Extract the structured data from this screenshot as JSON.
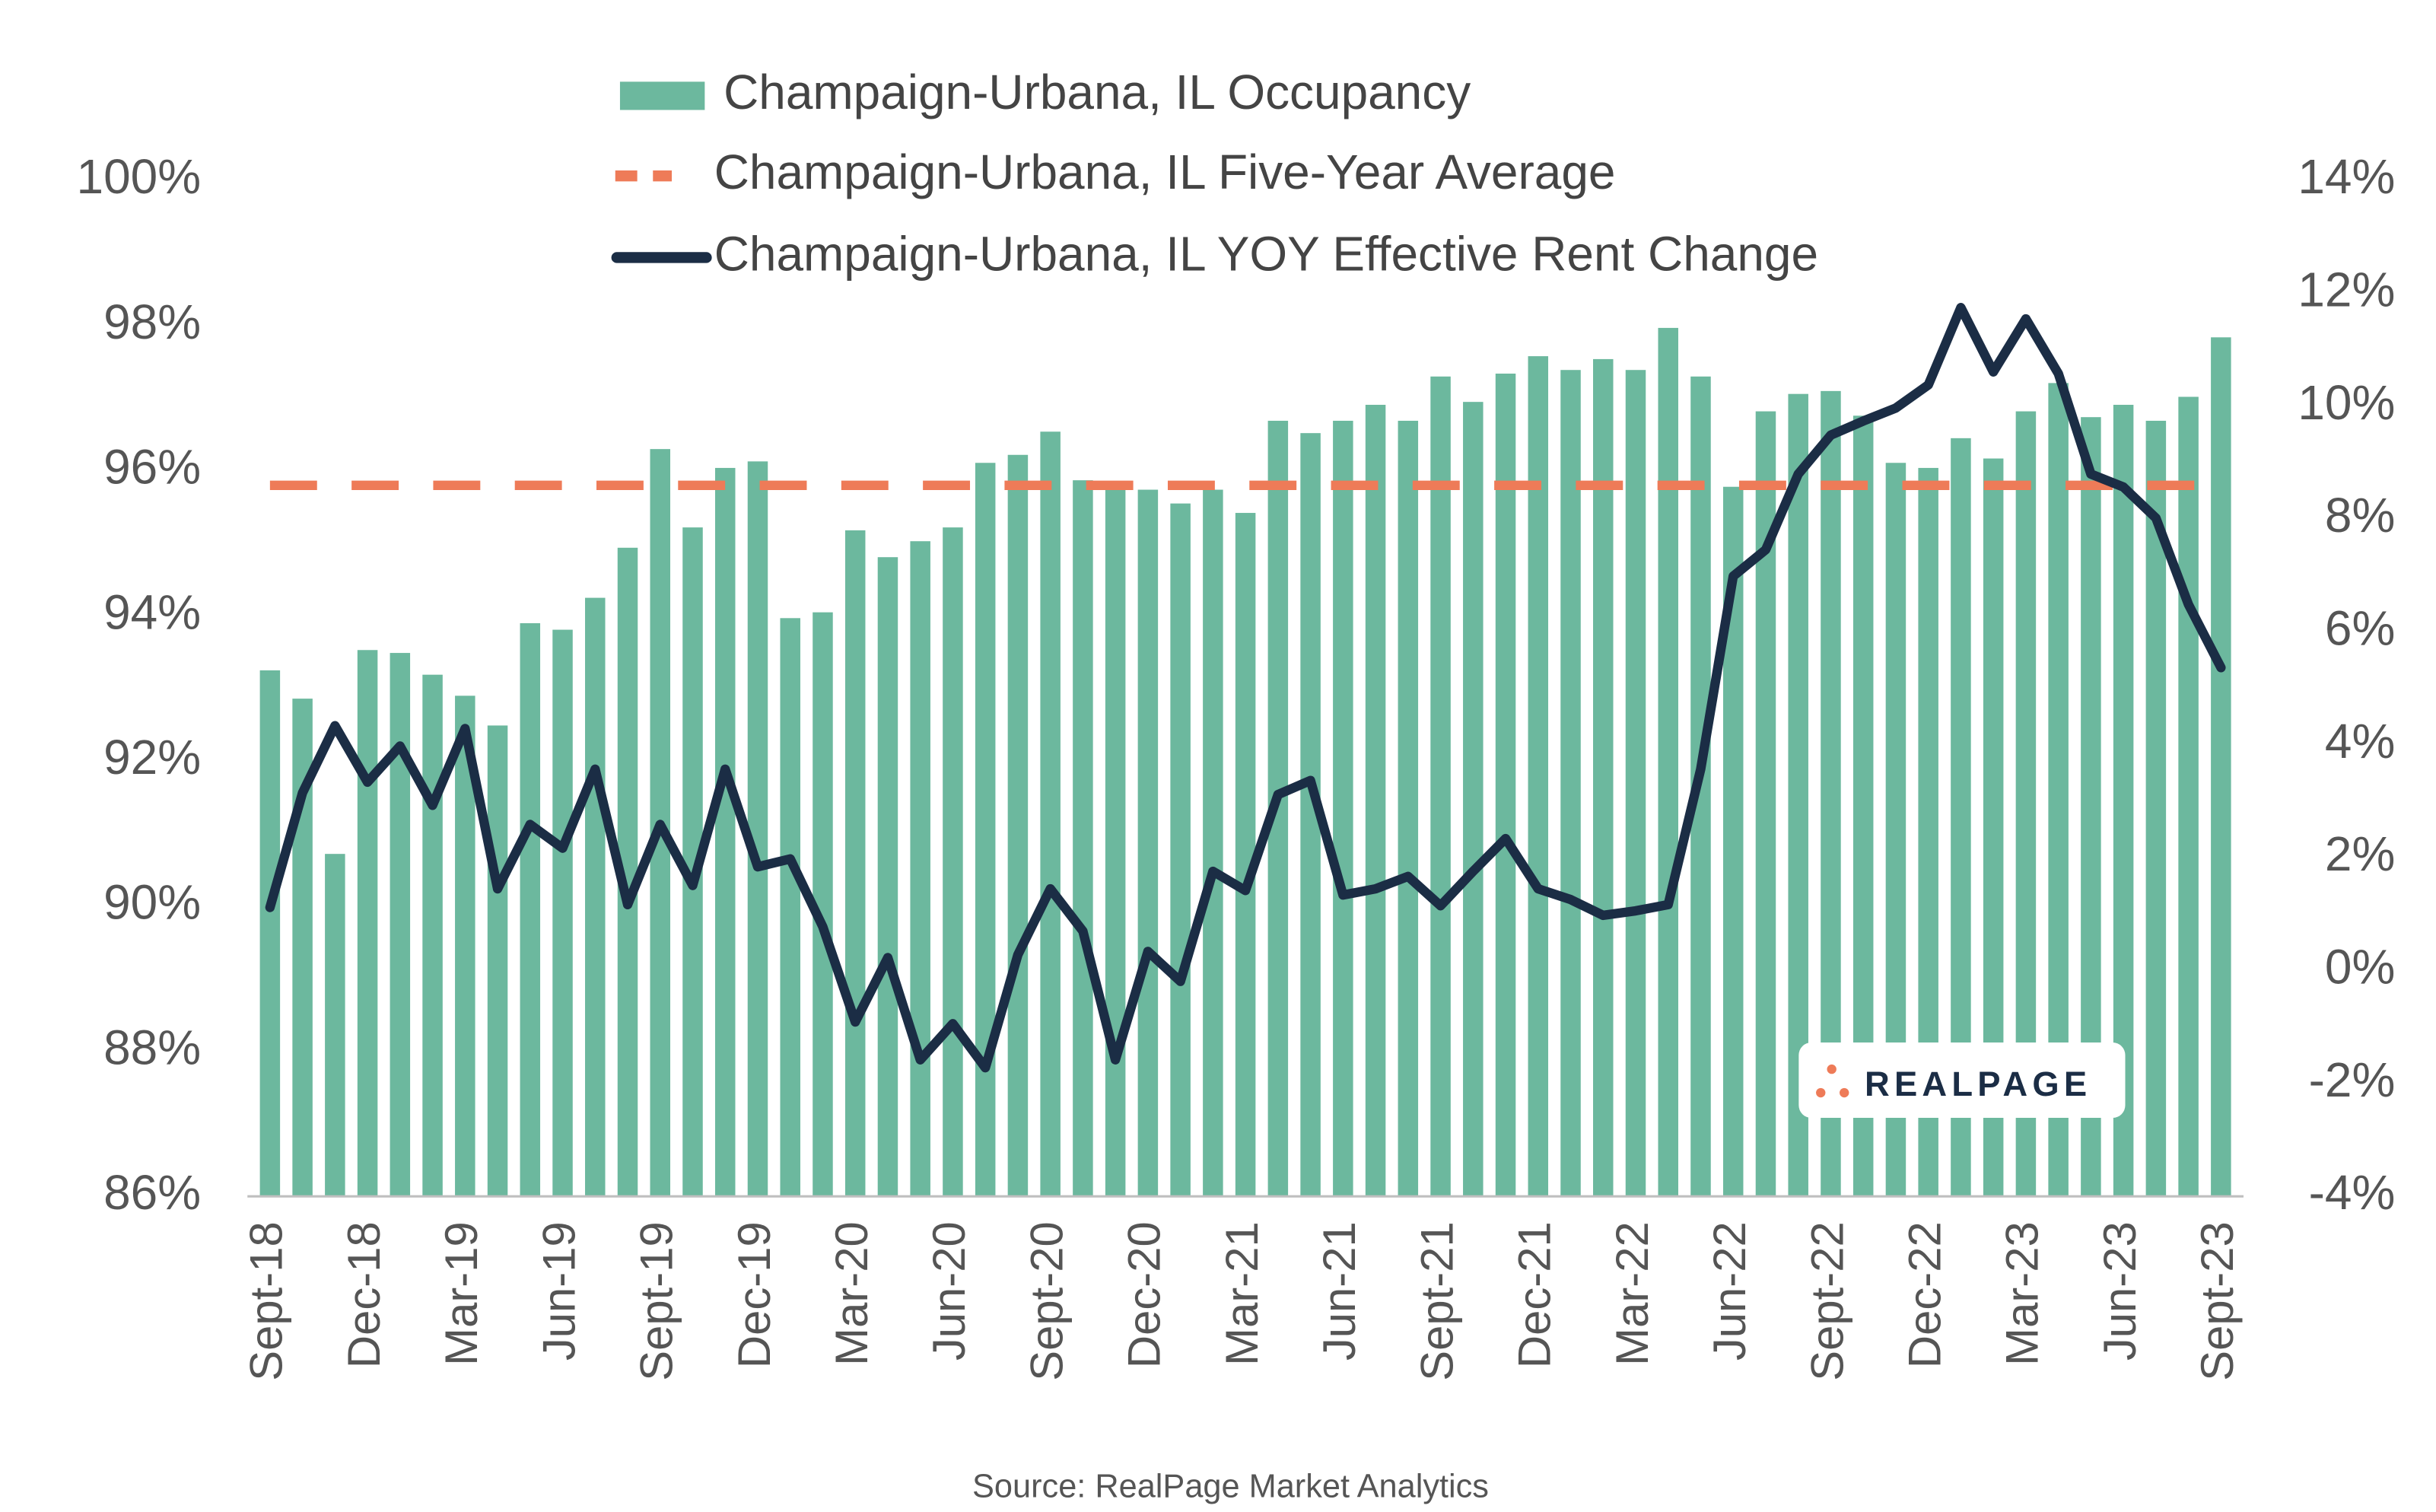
{
  "chart_data": {
    "type": "bar",
    "categories": [
      "Sept-18",
      null,
      null,
      "Dec-18",
      null,
      null,
      "Mar-19",
      null,
      null,
      "Jun-19",
      null,
      null,
      "Sept-19",
      null,
      null,
      "Dec-19",
      null,
      null,
      "Mar-20",
      null,
      null,
      "Jun-20",
      null,
      null,
      "Sept-20",
      null,
      null,
      "Dec-20",
      null,
      null,
      "Mar-21",
      null,
      null,
      "Jun-21",
      null,
      null,
      "Sept-21",
      null,
      null,
      "Dec-21",
      null,
      null,
      "Mar-22",
      null,
      null,
      "Jun-22",
      null,
      null,
      "Sept-22",
      null,
      null,
      "Dec-22",
      null,
      null,
      "Mar-23",
      null,
      null,
      "Jun-23",
      null,
      null,
      "Sept-23"
    ],
    "series": [
      {
        "name": "Champaign-Urbana, IL Occupancy",
        "type": "bar",
        "color": "#6cb89e",
        "axis": "y",
        "values": [
          93.25,
          92.86,
          90.72,
          93.53,
          93.49,
          93.19,
          92.9,
          92.49,
          93.9,
          93.81,
          94.25,
          94.94,
          96.3,
          95.22,
          96.04,
          96.13,
          93.97,
          94.05,
          95.18,
          94.81,
          95.03,
          95.22,
          96.11,
          96.22,
          96.54,
          95.87,
          95.74,
          95.74,
          95.55,
          95.74,
          95.42,
          96.69,
          96.52,
          96.69,
          96.91,
          96.69,
          97.3,
          96.95,
          97.34,
          97.58,
          97.39,
          97.54,
          97.39,
          97.97,
          97.3,
          95.78,
          96.82,
          97.06,
          97.1,
          96.76,
          96.11,
          96.04,
          96.45,
          96.17,
          96.82,
          97.21,
          96.74,
          96.91,
          96.69,
          97.02,
          97.84
        ]
      },
      {
        "name": "Champaign-Urbana, IL YOY Effective Rent Change",
        "type": "line",
        "color": "#1b2d45",
        "axis": "y2",
        "values": [
          1.12,
          3.15,
          4.34,
          3.34,
          3.98,
          2.93,
          4.29,
          1.45,
          2.59,
          2.17,
          3.57,
          1.17,
          2.59,
          1.51,
          3.57,
          1.84,
          1.98,
          0.78,
          -0.91,
          0.23,
          -1.58,
          -0.94,
          -1.72,
          0.28,
          1.45,
          0.7,
          -1.58,
          0.34,
          -0.19,
          1.76,
          1.42,
          3.12,
          3.37,
          1.34,
          1.45,
          1.67,
          1.15,
          1.76,
          2.34,
          1.45,
          1.26,
          0.98,
          1.06,
          1.17,
          3.57,
          6.99,
          7.46,
          8.8,
          9.49,
          9.74,
          9.97,
          10.38,
          11.75,
          10.61,
          11.55,
          10.58,
          8.8,
          8.57,
          8.02,
          6.49,
          5.37
        ]
      }
    ],
    "reference_lines": [
      {
        "name": "Champaign-Urbana, IL Five-Year Average",
        "value": 95.8,
        "color": "#ee7b58",
        "axis": "y",
        "style": "dashed"
      }
    ],
    "legend_order": [
      "series.0",
      "reference_lines.0",
      "series.1"
    ],
    "ylim": [
      86,
      100
    ],
    "yticks": [
      {
        "value": 86,
        "label": "86%"
      },
      {
        "value": 88,
        "label": "88%"
      },
      {
        "value": 90,
        "label": "90%"
      },
      {
        "value": 92,
        "label": "92%"
      },
      {
        "value": 94,
        "label": "94%"
      },
      {
        "value": 96,
        "label": "96%"
      },
      {
        "value": 98,
        "label": "98%"
      },
      {
        "value": 100,
        "label": "100%"
      }
    ],
    "y2lim": [
      -4,
      14
    ],
    "y2ticks": [
      {
        "value": -4,
        "label": "-4%"
      },
      {
        "value": -2,
        "label": "-2%"
      },
      {
        "value": 0,
        "label": "0%"
      },
      {
        "value": 2,
        "label": "2%"
      },
      {
        "value": 4,
        "label": "4%"
      },
      {
        "value": 6,
        "label": "6%"
      },
      {
        "value": 8,
        "label": "8%"
      },
      {
        "value": 10,
        "label": "10%"
      },
      {
        "value": 12,
        "label": "12%"
      },
      {
        "value": 14,
        "label": "14%"
      }
    ],
    "grid": false,
    "legend_position": "top",
    "source": "Source: RealPage Market Analytics",
    "logo": "REALPAGE"
  }
}
